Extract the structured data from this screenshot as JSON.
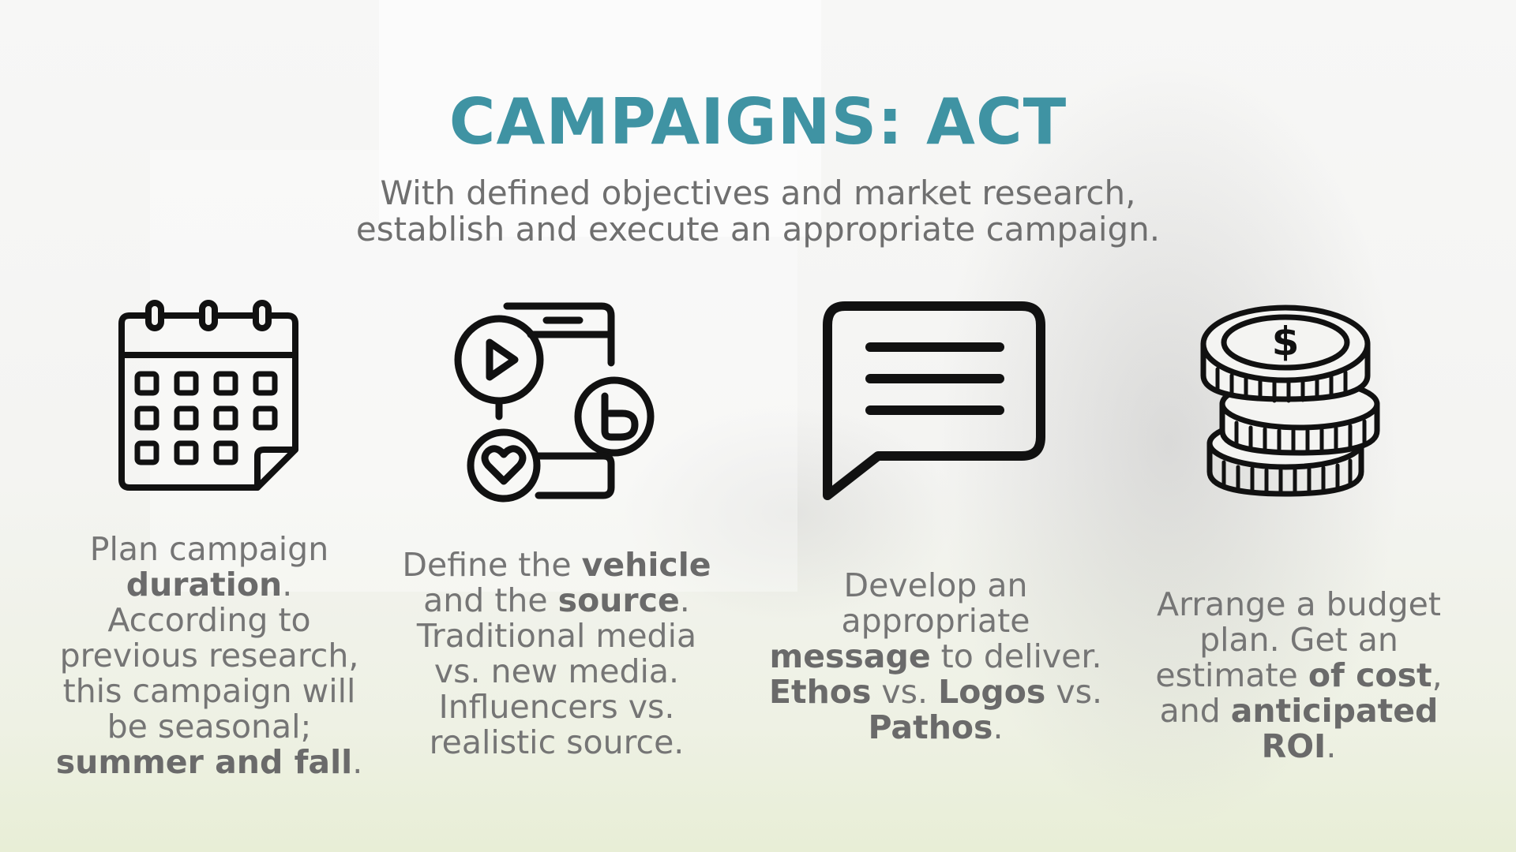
{
  "slide": {
    "title": "CAMPAIGNS: ACT",
    "subtitle_lines": [
      "With defined objectives and market research,",
      "establish and execute an appropriate campaign."
    ]
  },
  "icons": [
    "calendar-icon",
    "social-media-icon",
    "chat-message-icon",
    "coin-stack-icon"
  ],
  "columns": [
    {
      "lines": [
        [
          {
            "t": "Plan campaign"
          }
        ],
        [
          {
            "t": "duration",
            "b": true
          },
          {
            "t": "."
          }
        ],
        [
          {
            "t": "According to"
          }
        ],
        [
          {
            "t": "previous research,"
          }
        ],
        [
          {
            "t": "this campaign will"
          }
        ],
        [
          {
            "t": "be seasonal;"
          }
        ],
        [
          {
            "t": "summer and fall",
            "b": true
          },
          {
            "t": "."
          }
        ]
      ]
    },
    {
      "lines": [
        [
          {
            "t": "Define the "
          },
          {
            "t": "vehicle",
            "b": true
          }
        ],
        [
          {
            "t": "and the "
          },
          {
            "t": "source",
            "b": true
          },
          {
            "t": "."
          }
        ],
        [
          {
            "t": "Traditional media"
          }
        ],
        [
          {
            "t": "vs. new media."
          }
        ],
        [
          {
            "t": "Influencers vs."
          }
        ],
        [
          {
            "t": "realistic source."
          }
        ]
      ]
    },
    {
      "lines": [
        [
          {
            "t": "Develop an"
          }
        ],
        [
          {
            "t": "appropriate"
          }
        ],
        [
          {
            "t": "message",
            "b": true
          },
          {
            "t": " to deliver."
          }
        ],
        [
          {
            "t": "Ethos",
            "b": true
          },
          {
            "t": " vs. "
          },
          {
            "t": "Logos",
            "b": true
          },
          {
            "t": " vs."
          }
        ],
        [
          {
            "t": "Pathos",
            "b": true
          },
          {
            "t": "."
          }
        ]
      ]
    },
    {
      "lines": [
        [
          {
            "t": "Arrange a budget"
          }
        ],
        [
          {
            "t": "plan. Get an"
          }
        ],
        [
          {
            "t": "estimate "
          },
          {
            "t": "of cost",
            "b": true
          },
          {
            "t": ","
          }
        ],
        [
          {
            "t": "and "
          },
          {
            "t": "anticipated",
            "b": true
          }
        ],
        [
          {
            "t": "ROI",
            "b": true
          },
          {
            "t": "."
          }
        ]
      ]
    }
  ],
  "colors": {
    "title": "#3f93a3",
    "text": "#757575",
    "icon": "#111111"
  }
}
